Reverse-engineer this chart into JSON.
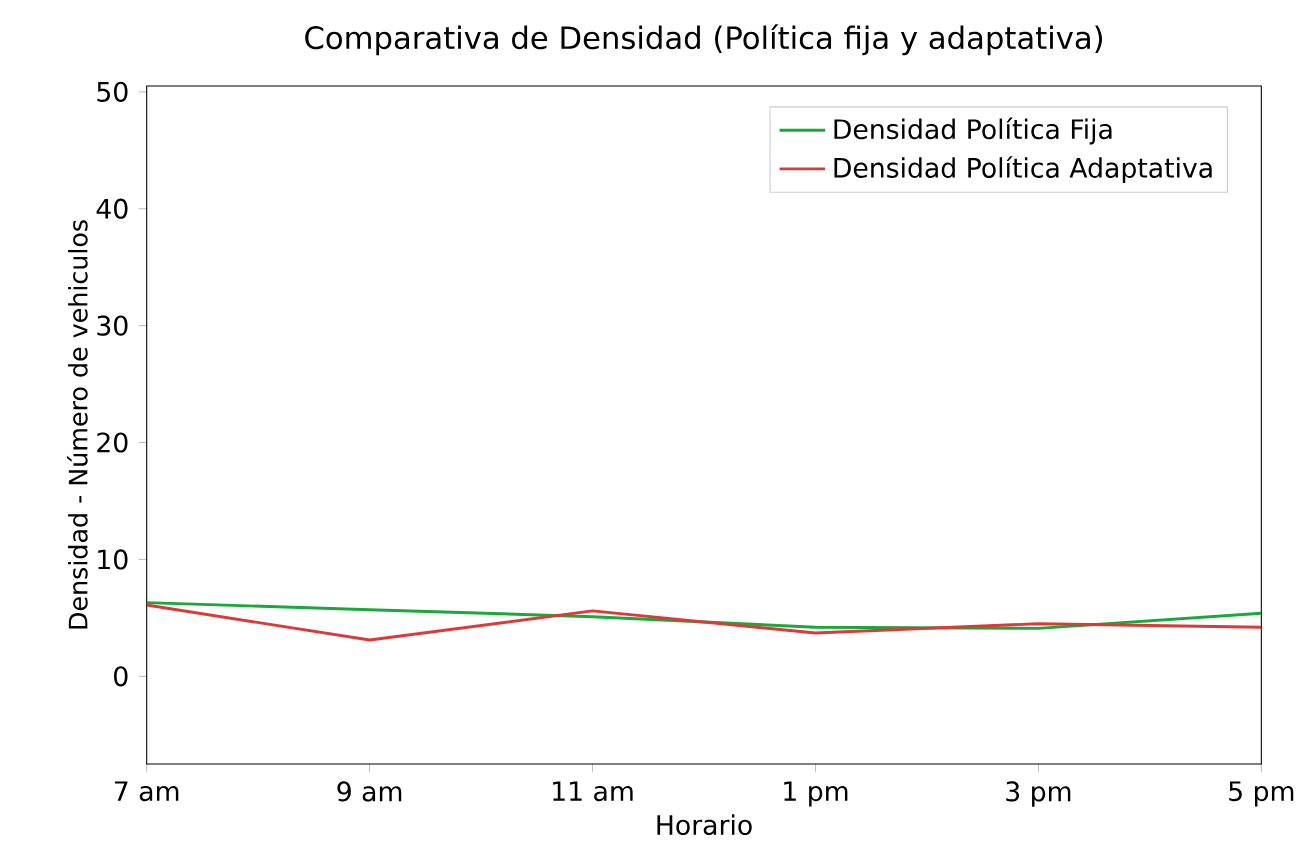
{
  "chart_data": {
    "type": "line",
    "title": "Comparativa de Densidad (Política fija y adaptativa)",
    "xlabel": "Horario",
    "ylabel": "Densidad - Número de vehiculos",
    "categories": [
      "7 am",
      "9 am",
      "11 am",
      "1 pm",
      "3 pm",
      "5 pm"
    ],
    "series": [
      {
        "name": "Densidad Política Fija",
        "color": "#1aa83a",
        "values": [
          6.3,
          5.7,
          5.1,
          4.2,
          4.1,
          5.4
        ]
      },
      {
        "name": "Densidad Política Adaptativa",
        "color": "#d93a3a",
        "values": [
          6.1,
          3.1,
          5.6,
          3.7,
          4.5,
          4.2
        ]
      }
    ],
    "ylim": [
      -7.5,
      50.5
    ],
    "yticks": [
      0,
      10,
      20,
      30,
      40,
      50
    ],
    "grid": false,
    "legend": "top right",
    "marker": "none",
    "line_style": "solid"
  }
}
